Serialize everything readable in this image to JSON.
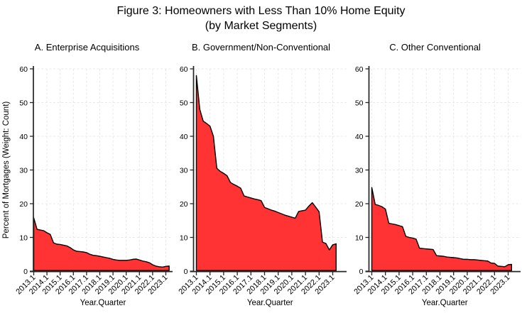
{
  "figure": {
    "title": "Figure 3: Homeowners with Less Than 10% Home Equity",
    "subtitle": "(by Market Segments)"
  },
  "chart_data": {
    "type": "area",
    "title": "Figure 3: Homeowners with Less Than 10% Home Equity",
    "subtitle": "(by Market Segments)",
    "xlabel": "Year.Quarter",
    "ylabel": "Percent of Mortgages (Weight: Count)",
    "ylim": [
      0,
      60
    ],
    "y_ticks": [
      0,
      10,
      20,
      30,
      40,
      50,
      60
    ],
    "grid": true,
    "legend_position": "none",
    "categories": [
      "2013.1",
      "2013.2",
      "2013.3",
      "2013.4",
      "2014.1",
      "2014.2",
      "2014.3",
      "2014.4",
      "2015.1",
      "2015.2",
      "2015.3",
      "2015.4",
      "2016.1",
      "2016.2",
      "2016.3",
      "2016.4",
      "2017.1",
      "2017.2",
      "2017.3",
      "2017.4",
      "2018.1",
      "2018.2",
      "2018.3",
      "2018.4",
      "2019.1",
      "2019.2",
      "2019.3",
      "2019.4",
      "2020.1",
      "2020.2",
      "2020.3",
      "2020.4",
      "2021.1",
      "2021.2",
      "2021.3",
      "2021.4",
      "2022.1",
      "2022.2",
      "2022.3",
      "2022.4",
      "2023.1",
      "2023.2"
    ],
    "x_tick_labels": [
      "2013.1",
      "2014.1",
      "2015.1",
      "2016.1",
      "2017.1",
      "2018.1",
      "2019.1",
      "2020.1",
      "2021.1",
      "2022.1",
      "2023.1"
    ],
    "series": [
      {
        "name": "A. Enterprise Acquisitions",
        "values": [
          15.8,
          12.4,
          12.2,
          12.0,
          11.4,
          10.9,
          8.4,
          8.0,
          7.9,
          7.7,
          7.5,
          7.0,
          6.3,
          5.9,
          5.8,
          5.7,
          5.5,
          5.0,
          4.7,
          4.6,
          4.4,
          4.2,
          4.0,
          3.8,
          3.5,
          3.3,
          3.2,
          3.2,
          3.2,
          3.3,
          3.5,
          3.6,
          3.3,
          3.0,
          2.8,
          2.5,
          1.9,
          1.5,
          1.3,
          1.2,
          1.4,
          1.5
        ]
      },
      {
        "name": "B. Government/Non-Conventional",
        "values": [
          58.0,
          48.0,
          44.5,
          43.8,
          43.0,
          40.0,
          30.5,
          29.6,
          29.0,
          28.3,
          26.3,
          25.7,
          25.2,
          24.6,
          22.3,
          22.0,
          21.7,
          21.4,
          21.2,
          20.9,
          18.9,
          18.5,
          18.1,
          17.8,
          17.4,
          17.0,
          16.6,
          16.3,
          16.0,
          15.7,
          17.7,
          17.9,
          18.1,
          19.3,
          20.3,
          19.0,
          17.6,
          8.6,
          8.2,
          6.3,
          7.8,
          8.1
        ]
      },
      {
        "name": "C. Other Conventional",
        "values": [
          24.8,
          19.8,
          19.5,
          19.1,
          18.4,
          14.2,
          14.0,
          13.8,
          13.5,
          13.2,
          10.3,
          10.0,
          9.8,
          9.5,
          6.8,
          6.7,
          6.6,
          6.5,
          6.4,
          4.6,
          4.5,
          4.4,
          4.2,
          4.1,
          4.0,
          3.9,
          3.7,
          3.5,
          3.5,
          3.4,
          3.4,
          3.3,
          3.2,
          3.1,
          3.0,
          2.4,
          2.3,
          1.5,
          1.4,
          1.3,
          1.9,
          2.0
        ]
      }
    ],
    "colors": {
      "fill": "#FF3333",
      "outline": "#000000",
      "grid": "#E8E8E8",
      "axis": "#262626",
      "text": "#000000"
    }
  }
}
